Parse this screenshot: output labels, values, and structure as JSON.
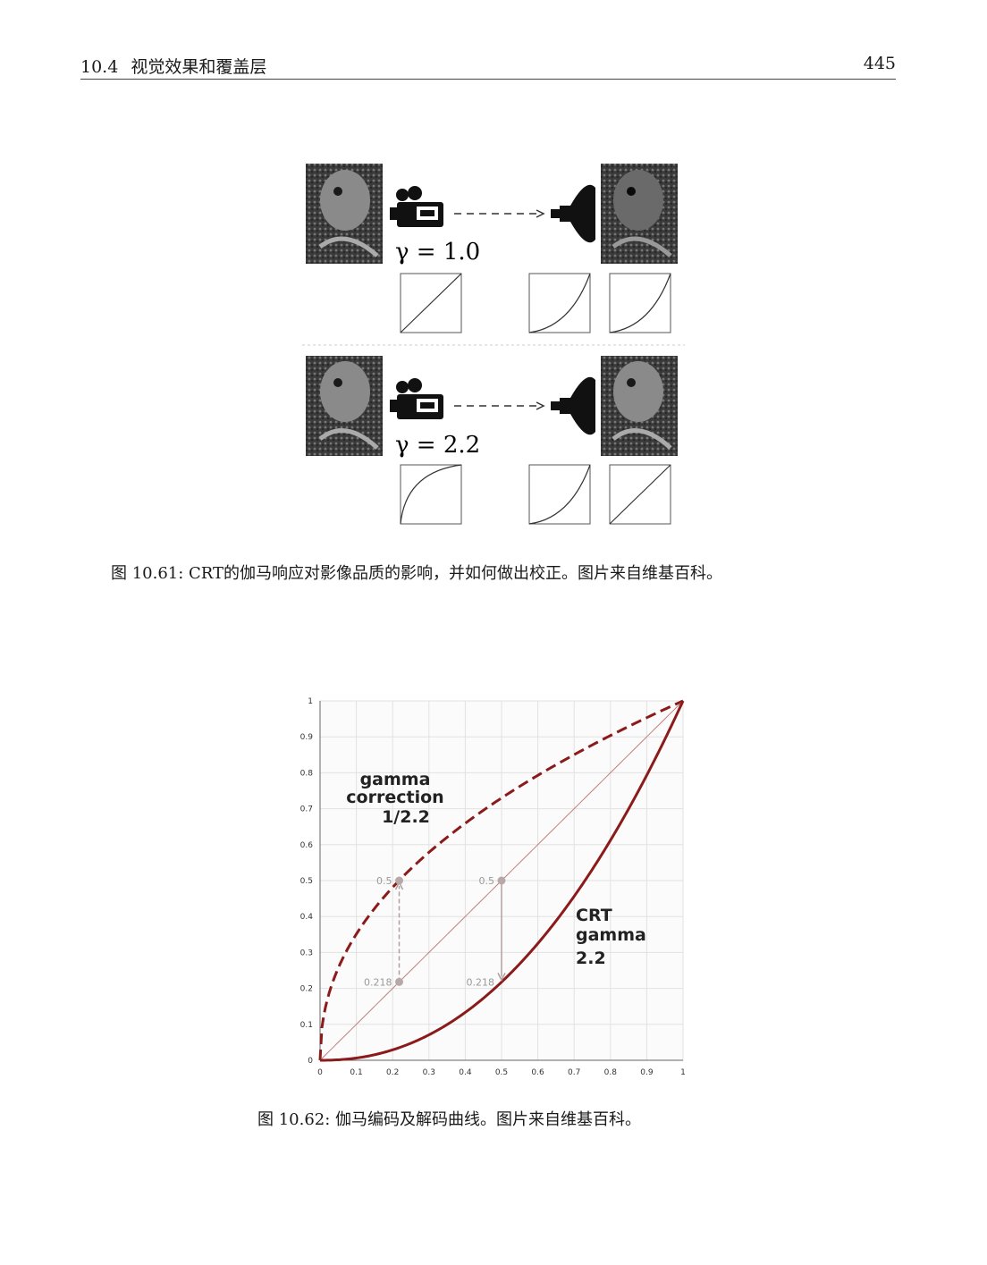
{
  "header": {
    "section_number": "10.4",
    "section_title": "视觉效果和覆盖层",
    "page_number": "445"
  },
  "figure1": {
    "rows": [
      {
        "gamma_label": "γ = 1.0",
        "curves": [
          "linear",
          "power",
          "power"
        ]
      },
      {
        "gamma_label": "γ = 2.2",
        "curves": [
          "root",
          "power",
          "linear"
        ]
      }
    ],
    "icons": [
      "parrot-photo",
      "video-camera-icon",
      "dashed-arrow",
      "crt-lamp-icon",
      "parrot-photo"
    ],
    "caption": "图 10.61: CRT的伽马响应对影像品质的影响，并如何做出校正。图片来自维基百科。"
  },
  "figure2": {
    "caption": "图 10.62: 伽马编码及解码曲线。图片来自维基百科。",
    "chart_data": {
      "type": "line",
      "xlim": [
        0,
        1
      ],
      "ylim": [
        0,
        1
      ],
      "x_ticks": [
        "0",
        "0.1",
        "0.2",
        "0.3",
        "0.4",
        "0.5",
        "0.6",
        "0.7",
        "0.8",
        "0.9",
        "1"
      ],
      "y_ticks": [
        "0",
        "0.1",
        "0.2",
        "0.3",
        "0.4",
        "0.5",
        "0.6",
        "0.7",
        "0.8",
        "0.9",
        "1"
      ],
      "grid": true,
      "series": [
        {
          "exponent": 0.4545,
          "style": "dashed",
          "color": "#8b1a1a"
        },
        {
          "exponent": 1,
          "style": "thin",
          "color": "#c08080"
        },
        {
          "exponent": 2.2,
          "style": "solid",
          "color": "#8b1a1a"
        }
      ],
      "annotations": {
        "correction": [
          "gamma",
          "correction",
          "1/2.2"
        ],
        "crt": [
          "CRT",
          "gamma",
          "2.2"
        ]
      },
      "points": [
        {
          "x": 0.218,
          "y": 0.5,
          "label": "0.5"
        },
        {
          "x": 0.218,
          "y": 0.218,
          "label": "0.218"
        },
        {
          "x": 0.5,
          "y": 0.5,
          "label": "0.5"
        },
        {
          "x": 0.5,
          "y": 0.218,
          "label": "0.218"
        }
      ]
    }
  }
}
